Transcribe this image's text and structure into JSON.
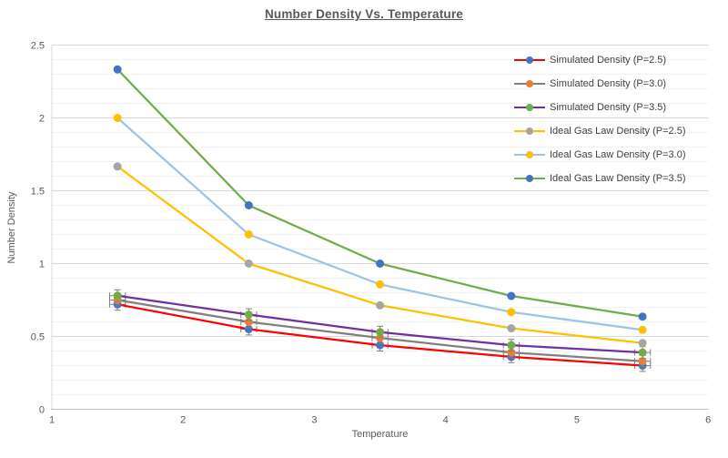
{
  "title": "Number Density Vs. Temperature",
  "style": {
    "background": "#ffffff",
    "text_color": "#595959",
    "legend_text_color": "#404040",
    "gridline_major_color": "#d9d9d9",
    "gridline_minor_color": "#f2f2f2",
    "axis_line_color": "#bfbfbf",
    "error_bar_color": "#7f7f7f"
  },
  "axes": {
    "x_label": "Temperature",
    "y_label": "Number Density",
    "x_ticks": [
      "1",
      "2",
      "3",
      "4",
      "5",
      "6"
    ],
    "x_tick_values": [
      1,
      2,
      3,
      4,
      5,
      6
    ],
    "y_ticks": [
      "0",
      "0.5",
      "1",
      "1.5",
      "2",
      "2.5"
    ],
    "y_tick_values": [
      0,
      0.5,
      1,
      1.5,
      2,
      2.5
    ],
    "x_range": [
      1,
      6
    ],
    "y_range": [
      0,
      2.5
    ],
    "y_minor_step": 0.1,
    "grid": "horizontal-major-and-minor",
    "legend_position": "inside-top-right"
  },
  "chart_data": {
    "type": "line",
    "x": [
      1.5,
      2.5,
      3.5,
      4.5,
      5.5
    ],
    "series": [
      {
        "name": "Simulated Density (P=2.5)",
        "values": [
          0.72,
          0.55,
          0.44,
          0.36,
          0.3
        ],
        "line_color": "#ff0000",
        "marker_color": "#4472c4",
        "error_bars": {
          "x": 0.06,
          "y": 0.04
        }
      },
      {
        "name": "Simulated Density (P=3.0)",
        "values": [
          0.75,
          0.6,
          0.49,
          0.39,
          0.33
        ],
        "line_color": "#7f7f7f",
        "marker_color": "#ed7d31",
        "error_bars": {
          "x": 0.06,
          "y": 0.04
        }
      },
      {
        "name": "Simulated Density (P=3.5)",
        "values": [
          0.78,
          0.65,
          0.53,
          0.44,
          0.39
        ],
        "line_color": "#7030a0",
        "marker_color": "#70ad47",
        "error_bars": {
          "x": 0.06,
          "y": 0.04
        }
      },
      {
        "name": "Ideal Gas Law Density (P=2.5)",
        "values": [
          1.667,
          1.0,
          0.714,
          0.556,
          0.455
        ],
        "line_color": "#ffc000",
        "marker_color": "#a5a5a5",
        "error_bars": null
      },
      {
        "name": "Ideal Gas Law Density (P=3.0)",
        "values": [
          2.0,
          1.2,
          0.857,
          0.667,
          0.545
        ],
        "line_color": "#9dc3e6",
        "marker_color": "#ffc000",
        "error_bars": null
      },
      {
        "name": "Ideal Gas Law Density (P=3.5)",
        "values": [
          2.333,
          1.4,
          1.0,
          0.778,
          0.636
        ],
        "line_color": "#70ad47",
        "marker_color": "#4472c4",
        "error_bars": null
      }
    ]
  }
}
